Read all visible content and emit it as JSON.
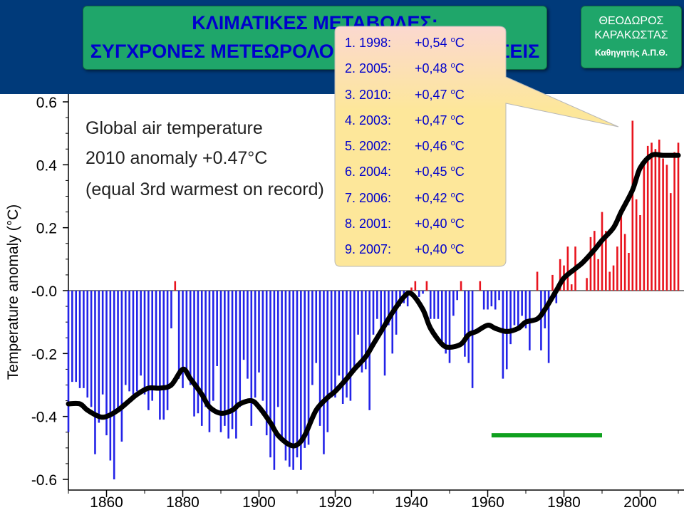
{
  "header": {
    "title_line1": "ΚΛΙΜΑΤΙΚΕΣ ΜΕΤΑΒΟΛΕΣ:",
    "title_line2": "ΣΥΓΧΡΟΝΕΣ ΜΕΤΕΩΡΟΛΟΓΙΚΕΣ ΠΑΡΑΤΗΡΗΣΕΙΣ",
    "author_line1": "ΘΕΟΔΩΡΟΣ",
    "author_line2": "ΚΑΡΑΚΩΣΤΑΣ",
    "author_role": "Καθηγητής Α.Π.Θ."
  },
  "rankings": [
    {
      "label": "1. 1998:",
      "value": "+0,54",
      "unit_o": "o",
      "unit_c": "C"
    },
    {
      "label": "2. 2005:",
      "value": "+0,48",
      "unit_o": "o",
      "unit_c": "C"
    },
    {
      "label": "3. 2010:",
      "value": "+0,47",
      "unit_o": "o",
      "unit_c": "C"
    },
    {
      "label": "4. 2003:",
      "value": "+0,47",
      "unit_o": "o",
      "unit_c": "C"
    },
    {
      "label": "5. 2002:",
      "value": "+0,46",
      "unit_o": "o",
      "unit_c": "C"
    },
    {
      "label": "6. 2004:",
      "value": "+0,45",
      "unit_o": "o",
      "unit_c": "C"
    },
    {
      "label": "7. 2006:",
      "value": "+0,42",
      "unit_o": "o",
      "unit_c": "C"
    },
    {
      "label": "8. 2001:",
      "value": "+0,40",
      "unit_o": "o",
      "unit_c": "C"
    },
    {
      "label": "9. 2007:",
      "value": "+0,40",
      "unit_o": "o",
      "unit_c": "C"
    }
  ],
  "colors": {
    "positive_bar": "#e8141e",
    "negative_bar": "#2323e8",
    "smooth_line": "#000000",
    "reference_bar": "#0fa01e",
    "callout_fill": "#fde79a",
    "callout_fill_top": "#fbd8d0",
    "title_box": "#1fa66a",
    "title_text": "#0000cc",
    "top_band": "#003a7a"
  },
  "chart_data": {
    "type": "bar",
    "annotation_lines": [
      "Global air temperature",
      "2010 anomaly +0.47°C",
      "(equal 3rd warmest on record)"
    ],
    "ylabel": "Temperature anomaly (°C)",
    "xlim": [
      1850,
      2010
    ],
    "ylim": [
      -0.6,
      0.6
    ],
    "y_ticks": [
      "0.6",
      "0.4",
      "0.2",
      "-0.0",
      "-0.2",
      "-0.4",
      "-0.6"
    ],
    "y_tick_values": [
      0.6,
      0.4,
      0.2,
      0.0,
      -0.2,
      -0.4,
      -0.6
    ],
    "x_ticks": [
      "1860",
      "1880",
      "1900",
      "1920",
      "1940",
      "1960",
      "1980",
      "2000"
    ],
    "x_tick_values": [
      1860,
      1880,
      1900,
      1920,
      1940,
      1960,
      1980,
      2000
    ],
    "grid": false,
    "reference_period": [
      1961,
      1990
    ],
    "reference_value": -0.46,
    "series": [
      {
        "type": "bar",
        "x": [
          1850,
          1851,
          1852,
          1853,
          1854,
          1855,
          1856,
          1857,
          1858,
          1859,
          1860,
          1861,
          1862,
          1863,
          1864,
          1865,
          1866,
          1867,
          1868,
          1869,
          1870,
          1871,
          1872,
          1873,
          1874,
          1875,
          1876,
          1877,
          1878,
          1879,
          1880,
          1881,
          1882,
          1883,
          1884,
          1885,
          1886,
          1887,
          1888,
          1889,
          1890,
          1891,
          1892,
          1893,
          1894,
          1895,
          1896,
          1897,
          1898,
          1899,
          1900,
          1901,
          1902,
          1903,
          1904,
          1905,
          1906,
          1907,
          1908,
          1909,
          1910,
          1911,
          1912,
          1913,
          1914,
          1915,
          1916,
          1917,
          1918,
          1919,
          1920,
          1921,
          1922,
          1923,
          1924,
          1925,
          1926,
          1927,
          1928,
          1929,
          1930,
          1931,
          1932,
          1933,
          1934,
          1935,
          1936,
          1937,
          1938,
          1939,
          1940,
          1941,
          1942,
          1943,
          1944,
          1945,
          1946,
          1947,
          1948,
          1949,
          1950,
          1951,
          1952,
          1953,
          1954,
          1955,
          1956,
          1957,
          1958,
          1959,
          1960,
          1961,
          1962,
          1963,
          1964,
          1965,
          1966,
          1967,
          1968,
          1969,
          1970,
          1971,
          1972,
          1973,
          1974,
          1975,
          1976,
          1977,
          1978,
          1979,
          1980,
          1981,
          1982,
          1983,
          1984,
          1985,
          1986,
          1987,
          1988,
          1989,
          1990,
          1991,
          1992,
          1993,
          1994,
          1995,
          1996,
          1997,
          1998,
          1999,
          2000,
          2001,
          2002,
          2003,
          2004,
          2005,
          2006,
          2007,
          2008,
          2009,
          2010
        ],
        "values": [
          -0.45,
          -0.29,
          -0.29,
          -0.31,
          -0.31,
          -0.34,
          -0.37,
          -0.52,
          -0.42,
          -0.33,
          -0.46,
          -0.54,
          -0.6,
          -0.38,
          -0.48,
          -0.3,
          -0.32,
          -0.33,
          -0.32,
          -0.27,
          -0.33,
          -0.38,
          -0.35,
          -0.31,
          -0.41,
          -0.41,
          -0.38,
          -0.12,
          0.03,
          -0.28,
          -0.31,
          -0.25,
          -0.3,
          -0.4,
          -0.39,
          -0.43,
          -0.37,
          -0.45,
          -0.35,
          -0.24,
          -0.45,
          -0.43,
          -0.47,
          -0.44,
          -0.47,
          -0.37,
          -0.22,
          -0.28,
          -0.43,
          -0.34,
          -0.26,
          -0.35,
          -0.46,
          -0.53,
          -0.57,
          -0.37,
          -0.47,
          -0.54,
          -0.56,
          -0.57,
          -0.53,
          -0.57,
          -0.5,
          -0.49,
          -0.3,
          -0.23,
          -0.43,
          -0.52,
          -0.45,
          -0.34,
          -0.34,
          -0.27,
          -0.36,
          -0.34,
          -0.35,
          -0.26,
          -0.14,
          -0.26,
          -0.25,
          -0.38,
          -0.14,
          -0.09,
          -0.13,
          -0.27,
          -0.11,
          -0.2,
          -0.14,
          -0.05,
          -0.04,
          -0.05,
          0.01,
          0.03,
          -0.02,
          -0.01,
          0.03,
          -0.09,
          -0.09,
          -0.09,
          -0.17,
          -0.2,
          -0.23,
          -0.08,
          -0.03,
          0.03,
          -0.21,
          -0.23,
          -0.31,
          0.0,
          0.03,
          -0.06,
          -0.06,
          -0.05,
          -0.06,
          -0.03,
          -0.28,
          -0.25,
          -0.17,
          -0.11,
          -0.12,
          -0.08,
          -0.12,
          -0.19,
          0.0,
          0.06,
          -0.19,
          -0.12,
          -0.23,
          0.05,
          -0.04,
          0.1,
          0.08,
          0.14,
          0.02,
          0.14,
          0.0,
          0.0,
          0.04,
          0.17,
          0.19,
          0.1,
          0.25,
          0.19,
          0.06,
          0.08,
          0.14,
          0.26,
          0.18,
          0.12,
          0.54,
          0.29,
          0.24,
          0.4,
          0.46,
          0.47,
          0.45,
          0.48,
          0.42,
          0.4,
          0.31,
          0.44,
          0.47
        ]
      },
      {
        "type": "line",
        "x": [
          1850,
          1853,
          1855,
          1858,
          1860,
          1863,
          1866,
          1868,
          1871,
          1874,
          1877,
          1880,
          1882,
          1885,
          1887,
          1890,
          1893,
          1895,
          1898,
          1900,
          1903,
          1905,
          1908,
          1910,
          1912,
          1915,
          1918,
          1920,
          1923,
          1925,
          1928,
          1930,
          1933,
          1935,
          1938,
          1940,
          1943,
          1945,
          1948,
          1950,
          1953,
          1955,
          1957,
          1960,
          1962,
          1965,
          1968,
          1970,
          1973,
          1975,
          1978,
          1980,
          1983,
          1985,
          1988,
          1990,
          1993,
          1995,
          1998,
          2000,
          2003,
          2006,
          2010
        ],
        "values": [
          -0.36,
          -0.36,
          -0.38,
          -0.4,
          -0.4,
          -0.38,
          -0.35,
          -0.33,
          -0.31,
          -0.31,
          -0.3,
          -0.25,
          -0.28,
          -0.33,
          -0.37,
          -0.39,
          -0.38,
          -0.36,
          -0.35,
          -0.37,
          -0.42,
          -0.46,
          -0.49,
          -0.49,
          -0.46,
          -0.38,
          -0.34,
          -0.32,
          -0.28,
          -0.25,
          -0.21,
          -0.17,
          -0.11,
          -0.07,
          -0.02,
          -0.01,
          -0.06,
          -0.12,
          -0.17,
          -0.18,
          -0.17,
          -0.14,
          -0.13,
          -0.11,
          -0.12,
          -0.13,
          -0.12,
          -0.1,
          -0.09,
          -0.06,
          0.0,
          0.04,
          0.07,
          0.09,
          0.13,
          0.16,
          0.2,
          0.25,
          0.32,
          0.39,
          0.43,
          0.43,
          0.43
        ]
      }
    ]
  }
}
